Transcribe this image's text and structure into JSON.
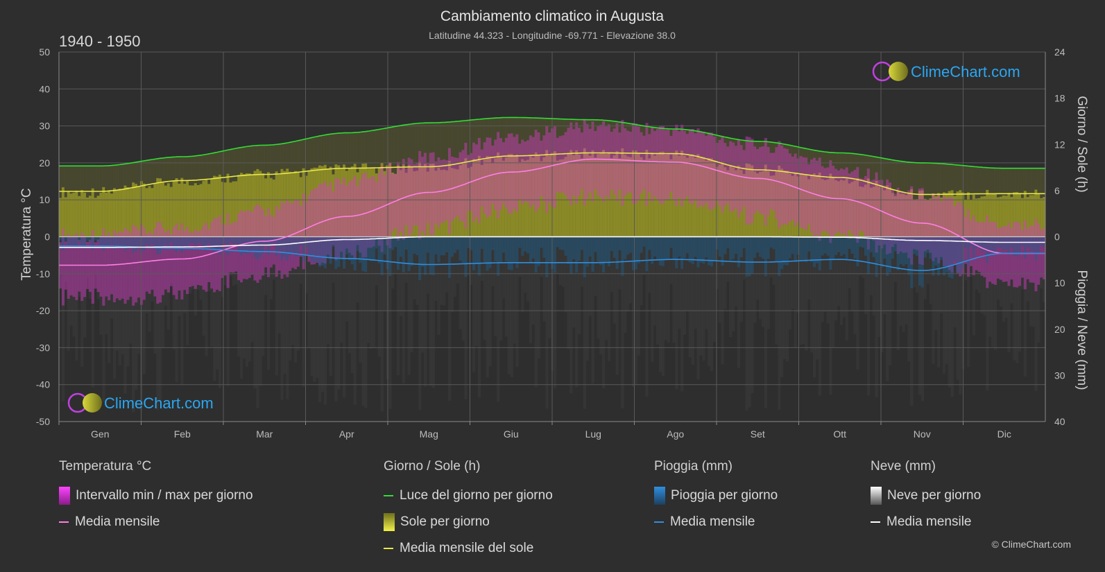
{
  "title": "Cambiamento climatico in Augusta",
  "subtitle": "Latitudine 44.323 - Longitudine -69.771 - Elevazione 38.0",
  "period": "1940 - 1950",
  "logo_text": "ClimeChart.com",
  "copyright": "© ClimeChart.com",
  "colors": {
    "background": "#2e2e2e",
    "daylight": "#33dd33",
    "sunshine_band": "#9a9a26",
    "sunshine_mean": "#e8e84a",
    "temp_band": "#d63cc8",
    "temp_mean": "#ff7fe6",
    "rain_band": "#1d5f8f",
    "rain_mean": "#2f8fe0",
    "snow_band": "#8a8a8a",
    "snow_mean": "#ffffff",
    "logo": "#2aa7f2"
  },
  "legend": {
    "temperature": {
      "header": "Temperatura °C",
      "range_label": "Intervallo min / max per giorno",
      "mean_label": "Media mensile"
    },
    "sun": {
      "header": "Giorno / Sole (h)",
      "daylight_label": "Luce del giorno per giorno",
      "sunshine_label": "Sole per giorno",
      "sunshine_mean_label": "Media mensile del sole"
    },
    "rain": {
      "header": "Pioggia (mm)",
      "rain_label": "Pioggia per giorno",
      "mean_label": "Media mensile"
    },
    "snow": {
      "header": "Neve (mm)",
      "snow_label": "Neve per giorno",
      "mean_label": "Media mensile"
    }
  },
  "chart_data": {
    "type": "area",
    "months": [
      "Gen",
      "Feb",
      "Mar",
      "Apr",
      "Mag",
      "Giu",
      "Lug",
      "Ago",
      "Set",
      "Ott",
      "Nov",
      "Dic"
    ],
    "y_left": {
      "label": "Temperatura °C",
      "range": [
        -50,
        50
      ],
      "ticks": [
        50,
        40,
        30,
        20,
        10,
        0,
        -10,
        -20,
        -30,
        -40,
        -50
      ]
    },
    "y_right_top": {
      "label": "Giorno / Sole (h)",
      "range": [
        0,
        24
      ],
      "ticks": [
        24,
        18,
        12,
        6,
        0
      ]
    },
    "y_right_bottom": {
      "label": "Pioggia / Neve (mm)",
      "range": [
        0,
        40
      ],
      "ticks": [
        10,
        20,
        30,
        40
      ]
    },
    "grid": true,
    "series": [
      {
        "name": "Luce del giorno per giorno",
        "unit": "h",
        "values": [
          9.2,
          10.4,
          11.9,
          13.5,
          14.8,
          15.5,
          15.2,
          14.0,
          12.4,
          10.9,
          9.6,
          8.9
        ]
      },
      {
        "name": "Sole per giorno",
        "unit": "h",
        "values": [
          5.8,
          7.2,
          8.1,
          8.8,
          9.0,
          10.4,
          10.8,
          10.7,
          8.7,
          7.6,
          5.4,
          5.6
        ]
      },
      {
        "name": "Media mensile del sole",
        "unit": "h",
        "values": [
          5.9,
          7.3,
          8.1,
          8.9,
          9.1,
          10.5,
          10.9,
          10.8,
          8.7,
          7.7,
          5.5,
          5.6
        ]
      },
      {
        "name": "Temperatura media mensile",
        "unit": "°C",
        "values": [
          -7.7,
          -6.0,
          -1.2,
          5.5,
          12.0,
          17.5,
          21.0,
          20.2,
          15.8,
          10.3,
          3.7,
          -4.5
        ]
      },
      {
        "name": "Intervallo min",
        "unit": "°C",
        "values": [
          -14.0,
          -13.0,
          -7.5,
          -1.5,
          4.5,
          10.0,
          13.5,
          12.5,
          8.0,
          2.5,
          -3.0,
          -10.5
        ]
      },
      {
        "name": "Intervallo max",
        "unit": "°C",
        "values": [
          -1.5,
          0.5,
          5.0,
          12.5,
          19.5,
          25.0,
          28.0,
          27.0,
          23.0,
          17.0,
          9.5,
          1.5
        ]
      },
      {
        "name": "Pioggia media mensile",
        "unit": "mm",
        "values": [
          2.0,
          2.5,
          3.2,
          4.7,
          6.0,
          5.6,
          5.6,
          4.9,
          5.5,
          4.9,
          7.3,
          3.6
        ]
      },
      {
        "name": "Neve media mensile",
        "unit": "mm",
        "values": [
          2.3,
          2.2,
          1.8,
          0.6,
          0.0,
          0.0,
          0.0,
          0.0,
          0.0,
          0.1,
          0.8,
          1.2
        ]
      }
    ]
  }
}
